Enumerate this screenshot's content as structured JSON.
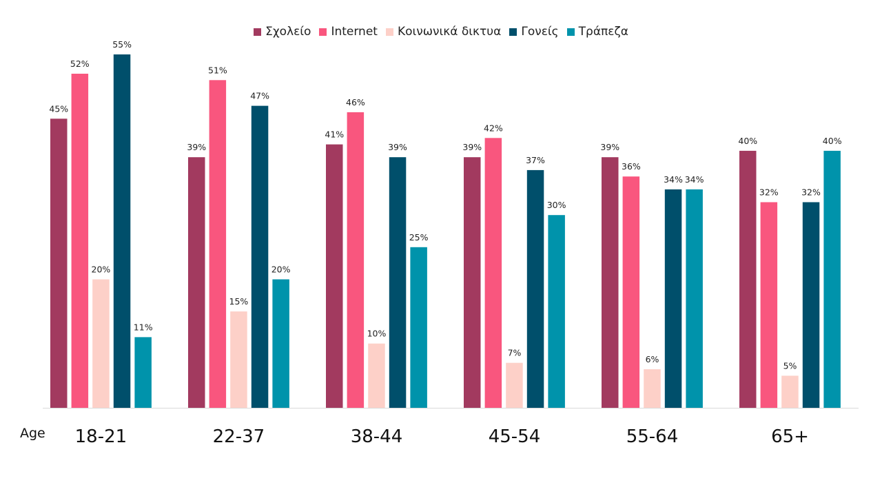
{
  "chart_data": {
    "type": "bar",
    "xlabel": "Age",
    "categories": [
      "18-21",
      "22-37",
      "38-44",
      "45-54",
      "55-64",
      "65+"
    ],
    "series": [
      {
        "name": "Σχολείο",
        "color": "#A23A5F",
        "values": [
          45,
          39,
          41,
          39,
          39,
          40
        ]
      },
      {
        "name": "Internet",
        "color": "#F9567E",
        "values": [
          52,
          51,
          46,
          42,
          36,
          32
        ]
      },
      {
        "name": "Κοινωνικά δικτυα",
        "color": "#FDD0C8",
        "values": [
          20,
          15,
          10,
          7,
          6,
          5
        ]
      },
      {
        "name": "Γονείς",
        "color": "#004F6B",
        "values": [
          55,
          47,
          39,
          37,
          34,
          32
        ]
      },
      {
        "name": "Τράπεζα",
        "color": "#0093AB",
        "values": [
          11,
          20,
          25,
          30,
          34,
          40
        ]
      }
    ],
    "value_suffix": "%",
    "ylim": [
      0,
      55
    ],
    "grid": false,
    "legend_position": "top"
  }
}
